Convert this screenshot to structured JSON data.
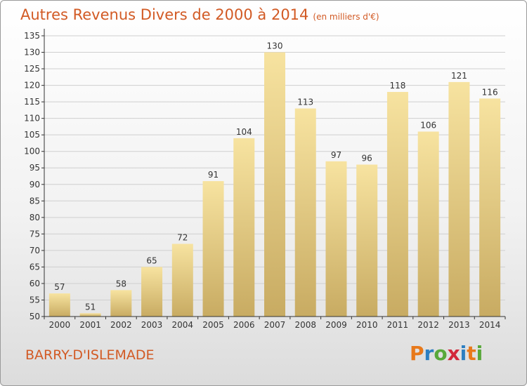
{
  "header": {
    "title": "Autres Revenus Divers de 2000 à 2014",
    "unit": "(en milliers d'€)"
  },
  "footer": {
    "commune": "BARRY-D'ISLEMADE"
  },
  "logo": {
    "letters": [
      "P",
      "r",
      "o",
      "x",
      "i",
      "t",
      "i"
    ],
    "colors": [
      "#e8791a",
      "#2c7fc1",
      "#58a83a",
      "#d2283a",
      "#2c7fc1",
      "#e8791a",
      "#58a83a"
    ]
  },
  "colors": {
    "bar_light": "#f7e3a0",
    "bar_dark": "#c8ab62",
    "grid": "#cfcfcf",
    "axis": "#333333",
    "title": "#d25a24"
  },
  "chart_data": {
    "type": "bar",
    "categories": [
      "2000",
      "2001",
      "2002",
      "2003",
      "2004",
      "2005",
      "2006",
      "2007",
      "2008",
      "2009",
      "2010",
      "2011",
      "2012",
      "2013",
      "2014"
    ],
    "values": [
      57,
      51,
      58,
      65,
      72,
      91,
      104,
      130,
      113,
      97,
      96,
      118,
      106,
      121,
      116
    ],
    "data_labels": [
      "57",
      "51",
      "58",
      "65",
      "72",
      "91",
      "104",
      "130",
      "113",
      "97",
      "96",
      "118",
      "106",
      "121",
      "116"
    ],
    "yticks": [
      "50",
      "55",
      "60",
      "65",
      "70",
      "75",
      "80",
      "85",
      "90",
      "95",
      "100",
      "105",
      "110",
      "115",
      "120",
      "125",
      "130",
      "135"
    ],
    "ylim": [
      50,
      135
    ],
    "grid": true,
    "xlabel": "",
    "ylabel": ""
  }
}
